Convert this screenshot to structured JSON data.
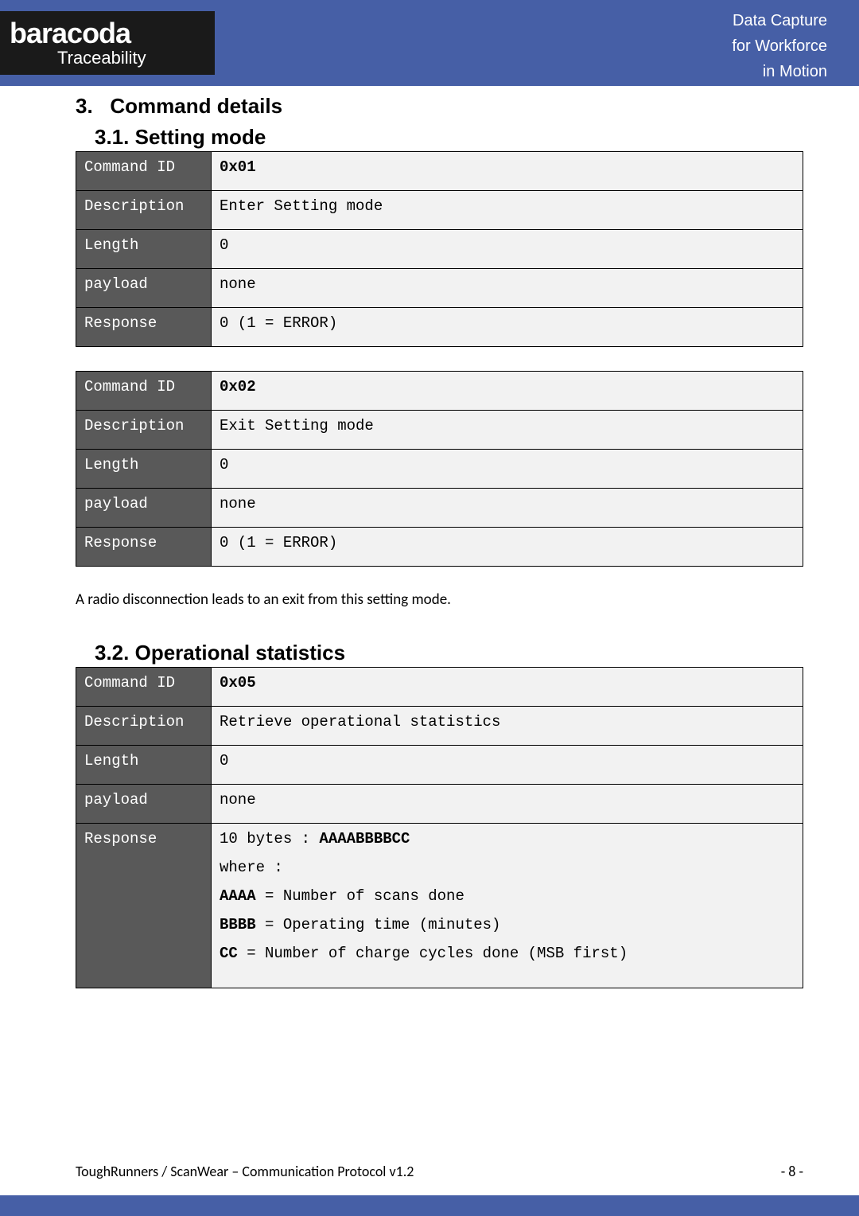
{
  "logo": {
    "main": "baracoda",
    "sub": "Traceability"
  },
  "header_right": {
    "line1": "Data Capture",
    "line2": "for Workforce",
    "line3": "in Motion"
  },
  "sections": {
    "h1_num": "3.",
    "h1_text": "Command details",
    "h2a_num": "3.1.",
    "h2a_text": "Setting mode",
    "h2b_num": "3.2.",
    "h2b_text": "Operational statistics"
  },
  "labels": {
    "command_id": "Command ID",
    "description": "Description",
    "length": "Length",
    "payload": "payload",
    "response": "Response"
  },
  "tables": {
    "t1": {
      "command_id": "0x01",
      "description": "Enter Setting mode",
      "length": "0",
      "payload": "none",
      "response": "0 (1 = ERROR)"
    },
    "t2": {
      "command_id": "0x02",
      "description": "Exit Setting mode",
      "length": "0",
      "payload": "none",
      "response": "0 (1 = ERROR)"
    },
    "t3": {
      "command_id": "0x05",
      "description": "Retrieve operational statistics",
      "length": "0",
      "payload": "none",
      "response_lines": {
        "l1a": "10 bytes : ",
        "l1b": "AAAABBBBCC",
        "l2": "where :",
        "l3a": "AAAA",
        "l3b": " = Number of scans done",
        "l4a": "BBBB",
        "l4b": " = Operating time (minutes)",
        "l5a": "CC",
        "l5b": " = Number of charge cycles done (MSB first)"
      }
    }
  },
  "note": "A radio disconnection leads to an exit from this setting mode.",
  "footer": {
    "left": "ToughRunners / ScanWear – Communication Protocol v1.2",
    "right": "- 8 -"
  },
  "colors": {
    "header_band": "#465fa6",
    "logo_bg": "#1a1a1a",
    "table_label_bg": "#595959",
    "table_value_bg": "#f2f2f2"
  }
}
